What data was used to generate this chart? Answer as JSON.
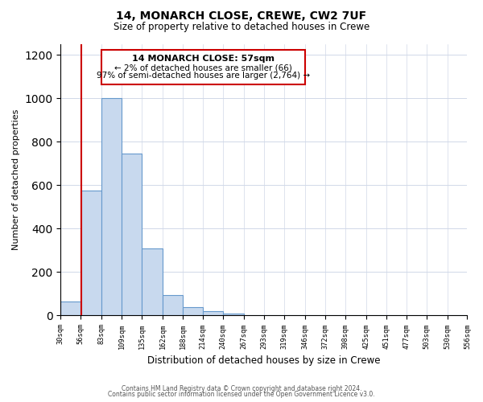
{
  "title1": "14, MONARCH CLOSE, CREWE, CW2 7UF",
  "title2": "Size of property relative to detached houses in Crewe",
  "xlabel": "Distribution of detached houses by size in Crewe",
  "ylabel": "Number of detached properties",
  "footer1": "Contains HM Land Registry data © Crown copyright and database right 2024.",
  "footer2": "Contains public sector information licensed under the Open Government Licence v3.0.",
  "bar_edges": [
    30,
    56,
    83,
    109,
    135,
    162,
    188,
    214,
    240,
    267,
    293,
    319,
    346,
    372,
    398,
    425,
    451,
    477,
    503,
    530,
    556
  ],
  "bar_heights": [
    66,
    575,
    1000,
    745,
    310,
    95,
    40,
    20,
    10,
    0,
    0,
    0,
    0,
    0,
    0,
    0,
    0,
    0,
    0,
    0
  ],
  "bar_color": "#c8d9ee",
  "bar_edgecolor": "#6699cc",
  "property_size": 57,
  "vline_color": "#cc0000",
  "annotation_text1": "14 MONARCH CLOSE: 57sqm",
  "annotation_text2": "← 2% of detached houses are smaller (66)",
  "annotation_text3": "97% of semi-detached houses are larger (2,764) →",
  "annotation_box_edgecolor": "#cc0000",
  "annotation_box_facecolor": "#ffffff",
  "ylim": [
    0,
    1250
  ],
  "yticks": [
    0,
    200,
    400,
    600,
    800,
    1000,
    1200
  ],
  "tick_labels": [
    "30sqm",
    "56sqm",
    "83sqm",
    "109sqm",
    "135sqm",
    "162sqm",
    "188sqm",
    "214sqm",
    "240sqm",
    "267sqm",
    "293sqm",
    "319sqm",
    "346sqm",
    "372sqm",
    "398sqm",
    "425sqm",
    "451sqm",
    "477sqm",
    "503sqm",
    "530sqm",
    "556sqm"
  ],
  "background_color": "#ffffff",
  "grid_color": "#d0d8e8"
}
